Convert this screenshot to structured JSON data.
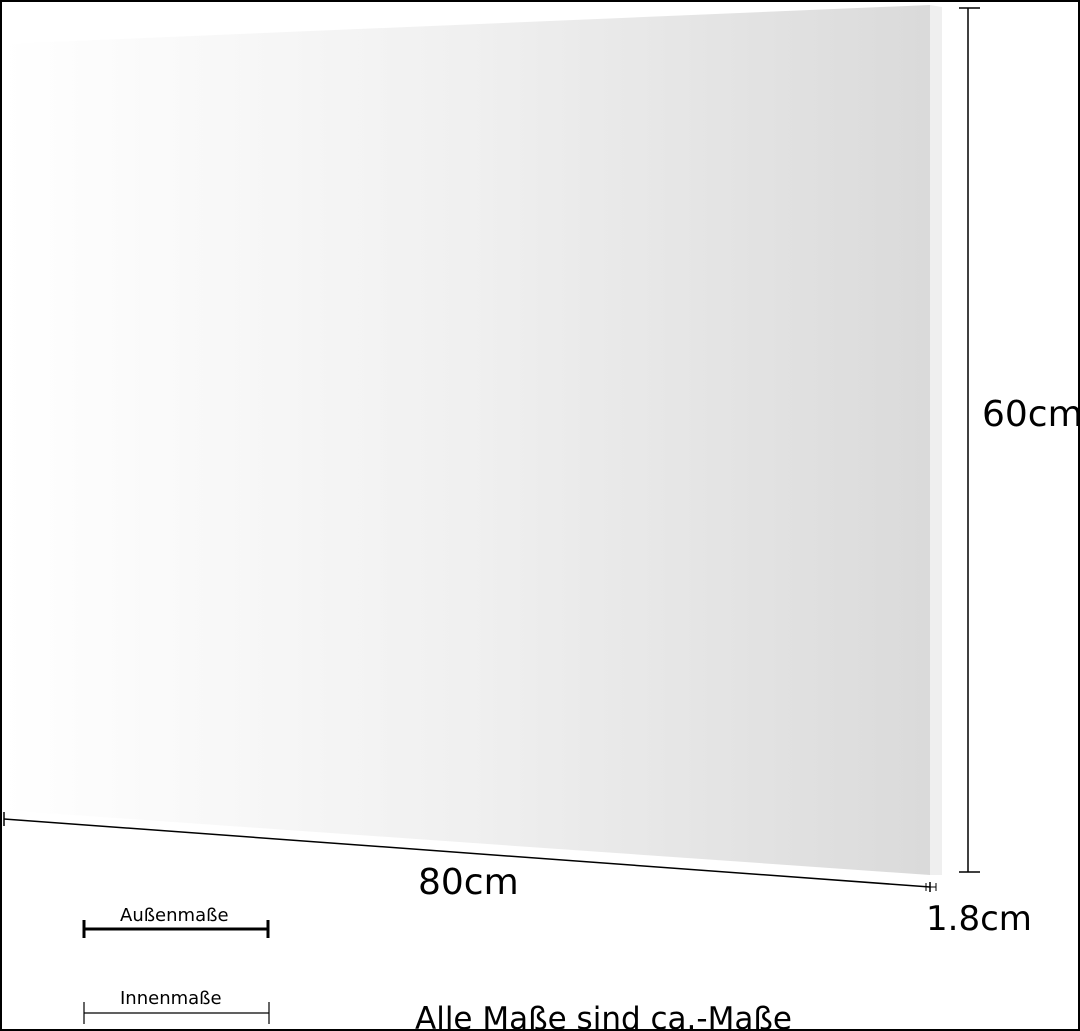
{
  "dimensions": {
    "width": "80cm",
    "height": "60cm",
    "depth": "1.8cm"
  },
  "legend": {
    "outer": "Außenmaße",
    "inner": "Innenmaße"
  },
  "note": "Alle Maße sind ca.-Maße",
  "colors": {
    "panel_light": "#ffffff",
    "panel_dark": "#dcdcdc",
    "line": "#000000"
  }
}
